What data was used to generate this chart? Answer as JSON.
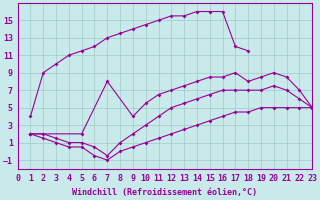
{
  "xlabel": "Windchill (Refroidissement éolien,°C)",
  "bg_color": "#c8eaea",
  "line_color": "#990099",
  "grid_color": "#a0c8c8",
  "xlim": [
    0,
    23
  ],
  "ylim": [
    -2,
    17
  ],
  "xticks": [
    0,
    1,
    2,
    3,
    4,
    5,
    6,
    7,
    8,
    9,
    10,
    11,
    12,
    13,
    14,
    15,
    16,
    17,
    18,
    19,
    20,
    21,
    22,
    23
  ],
  "yticks": [
    -1,
    1,
    3,
    5,
    7,
    9,
    11,
    13,
    15
  ],
  "curve_top_x": [
    1,
    2,
    3,
    4,
    5,
    6,
    7,
    8,
    9,
    10,
    11,
    12,
    13,
    14,
    15,
    16,
    17,
    18
  ],
  "curve_top_y": [
    4,
    9,
    10,
    11,
    11.5,
    12,
    13,
    13.5,
    14,
    14.5,
    15,
    15.5,
    15.5,
    16,
    16,
    16,
    12,
    11.5
  ],
  "curve_upper_mid_x": [
    1,
    5,
    7,
    9,
    10,
    11,
    12,
    13,
    14,
    15,
    16,
    17,
    18,
    19,
    20,
    21,
    22,
    23
  ],
  "curve_upper_mid_y": [
    2,
    2,
    8,
    4,
    5.5,
    6.5,
    7,
    7.5,
    8,
    8.5,
    8.5,
    9,
    8,
    8.5,
    9,
    8.5,
    7,
    5
  ],
  "curve_lower_mid_x": [
    1,
    2,
    3,
    4,
    5,
    6,
    7,
    8,
    9,
    10,
    11,
    12,
    13,
    14,
    15,
    16,
    17,
    18,
    19,
    20,
    21,
    22,
    23
  ],
  "curve_lower_mid_y": [
    2,
    2,
    1.5,
    1,
    1,
    0.5,
    -0.5,
    1,
    2,
    3,
    4,
    5,
    5.5,
    6,
    6.5,
    7,
    7,
    7,
    7,
    7.5,
    7,
    6,
    5
  ],
  "curve_bottom_x": [
    1,
    2,
    3,
    4,
    5,
    6,
    7,
    8,
    9,
    10,
    11,
    12,
    13,
    14,
    15,
    16,
    17,
    18,
    19,
    20,
    21,
    22,
    23
  ],
  "curve_bottom_y": [
    2,
    1.5,
    1,
    0.5,
    0.5,
    -0.5,
    -1,
    0,
    0.5,
    1,
    1.5,
    2,
    2.5,
    3,
    3.5,
    4,
    4.5,
    4.5,
    5,
    5,
    5,
    5,
    5
  ],
  "font_size": 6.0
}
